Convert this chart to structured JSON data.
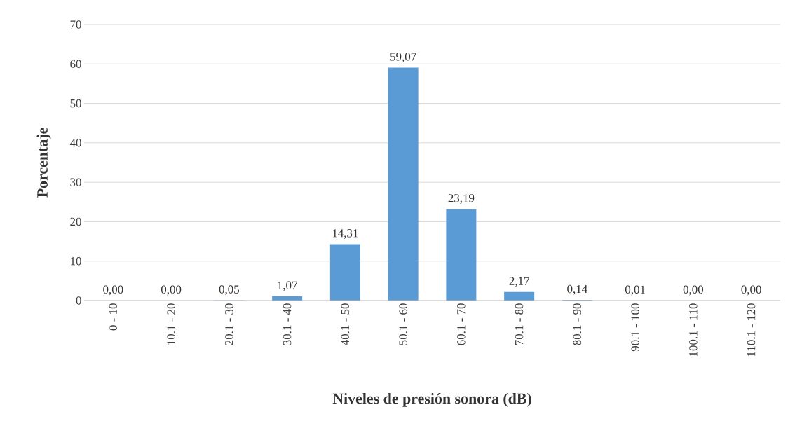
{
  "chart_data": {
    "type": "bar",
    "xlabel": "Niveles de presión sonora (dB)",
    "ylabel": "Porcentaje",
    "categories": [
      "0 - 10",
      "10.1 - 20",
      "20.1 - 30",
      "30.1 - 40",
      "40.1 - 50",
      "50.1 - 60",
      "60.1 - 70",
      "70.1 - 80",
      "80.1 - 90",
      "90.1 - 100",
      "100.1 - 110",
      "110.1 - 120"
    ],
    "values": [
      0,
      0,
      0.05,
      1.07,
      14.31,
      59.07,
      23.19,
      2.17,
      0.14,
      0.01,
      0,
      0
    ],
    "value_labels": [
      "0,00",
      "0,00",
      "0,05",
      "1,07",
      "14,31",
      "59,07",
      "23,19",
      "2,17",
      "0,14",
      "0,01",
      "0,00",
      "0,00"
    ],
    "color": "#5b9bd5",
    "ylim": [
      0,
      70
    ],
    "yticks": [
      0,
      10,
      20,
      30,
      40,
      50,
      60,
      70
    ],
    "grid": "y"
  }
}
